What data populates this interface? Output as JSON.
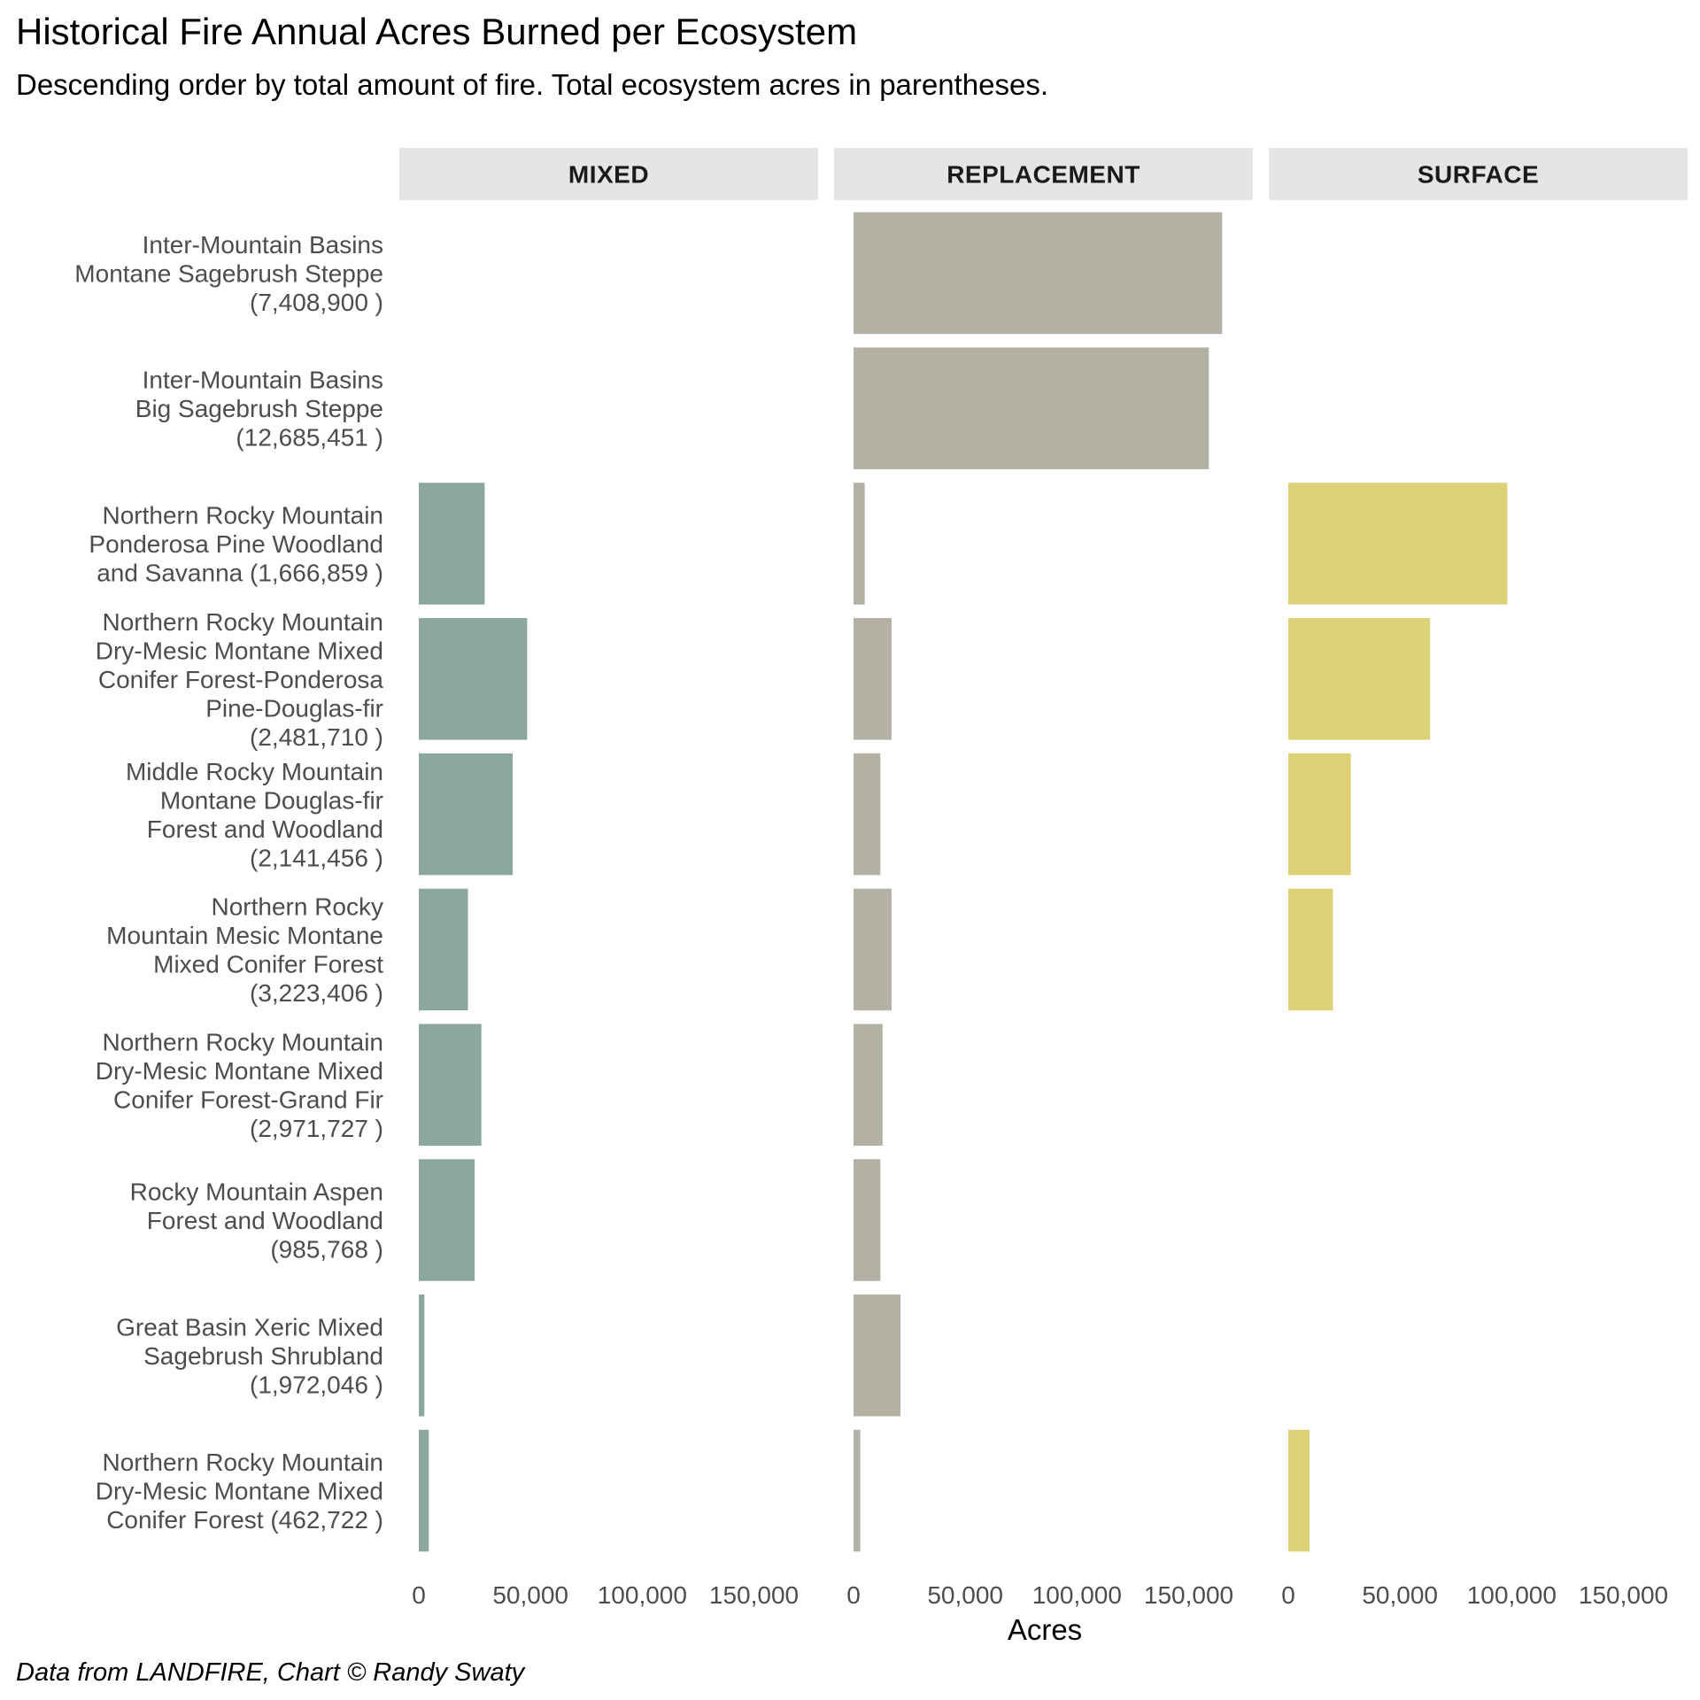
{
  "chart_data": {
    "type": "bar",
    "orientation": "horizontal",
    "faceted": true,
    "title": "Historical Fire Annual Acres Burned per Ecosystem",
    "subtitle": "Descending order by total amount of fire.  Total ecosystem acres in parentheses.",
    "caption": "Data from LANDFIRE, Chart © Randy Swaty",
    "xlabel": "Acres",
    "ylabel": "",
    "xlim": [
      0,
      170000
    ],
    "xticks": [
      0,
      50000,
      100000,
      150000
    ],
    "xtick_labels": [
      "0",
      "50,000",
      "100,000",
      "150,000"
    ],
    "grid": false,
    "categories": [
      [
        "Inter-Mountain Basins",
        "Montane Sagebrush Steppe",
        "(7,408,900 )"
      ],
      [
        "Inter-Mountain Basins",
        "Big Sagebrush Steppe",
        "(12,685,451 )"
      ],
      [
        "Northern Rocky Mountain",
        "Ponderosa Pine Woodland",
        "and Savanna (1,666,859 )"
      ],
      [
        "Northern Rocky Mountain",
        "Dry-Mesic Montane Mixed",
        "Conifer Forest-Ponderosa",
        "Pine-Douglas-fir",
        "(2,481,710 )"
      ],
      [
        "Middle Rocky Mountain",
        "Montane Douglas-fir",
        "Forest and Woodland",
        "(2,141,456 )"
      ],
      [
        "Northern Rocky",
        "Mountain Mesic Montane",
        "Mixed Conifer Forest",
        "(3,223,406 )"
      ],
      [
        "Northern Rocky Mountain",
        "Dry-Mesic Montane Mixed",
        "Conifer Forest-Grand Fir",
        "(2,971,727 )"
      ],
      [
        "Rocky Mountain Aspen",
        "Forest and Woodland",
        "(985,768 )"
      ],
      [
        "Great Basin Xeric Mixed",
        "Sagebrush Shrubland",
        "(1,972,046 )"
      ],
      [
        "Northern Rocky Mountain",
        "Dry-Mesic Montane Mixed",
        "Conifer Forest (462,722 )"
      ]
    ],
    "series": [
      {
        "name": "MIXED",
        "color": "#8ca89d",
        "values": [
          0,
          0,
          29500,
          48500,
          42000,
          22000,
          28000,
          25000,
          2500,
          4500
        ]
      },
      {
        "name": "REPLACEMENT",
        "color": "#b3b1a3",
        "values": [
          165000,
          159000,
          5000,
          17000,
          12000,
          17000,
          13000,
          12000,
          21000,
          3000
        ]
      },
      {
        "name": "SURFACE",
        "color": "#ddd177",
        "values": [
          0,
          0,
          98000,
          63500,
          28000,
          20000,
          0,
          0,
          0,
          9500
        ]
      }
    ]
  }
}
